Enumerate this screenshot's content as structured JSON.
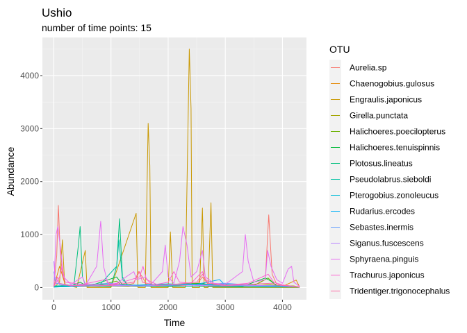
{
  "chart_data": {
    "type": "line",
    "title": "Ushio",
    "subtitle": "number of time points: 15",
    "xlabel": "Time",
    "ylabel": "Abundance",
    "xlim": [
      -200,
      4420
    ],
    "ylim": [
      -230,
      4720
    ],
    "x_ticks": [
      0,
      1000,
      2000,
      3000,
      4000
    ],
    "y_ticks": [
      0,
      1000,
      2000,
      3000,
      4000
    ],
    "x_tick_labels": [
      "0",
      "1000",
      "2000",
      "3000",
      "4000"
    ],
    "y_tick_labels": [
      "0",
      "1000",
      "2000",
      "3000",
      "4000"
    ],
    "grid": true,
    "legend": {
      "title": "OTU",
      "position": "right"
    },
    "series": [
      {
        "name": "Aurelia.sp",
        "color": "#F8766D",
        "points": [
          [
            0,
            20
          ],
          [
            50,
            600
          ],
          [
            80,
            1550
          ],
          [
            110,
            700
          ],
          [
            150,
            250
          ],
          [
            200,
            60
          ],
          [
            300,
            20
          ],
          [
            500,
            30
          ],
          [
            800,
            20
          ],
          [
            1000,
            40
          ],
          [
            1200,
            30
          ],
          [
            1400,
            80
          ],
          [
            1480,
            300
          ],
          [
            1550,
            200
          ],
          [
            1620,
            60
          ],
          [
            1800,
            20
          ],
          [
            2000,
            30
          ],
          [
            2300,
            40
          ],
          [
            2500,
            60
          ],
          [
            2600,
            200
          ],
          [
            2700,
            60
          ],
          [
            3000,
            30
          ],
          [
            3300,
            40
          ],
          [
            3500,
            30
          ],
          [
            3700,
            150
          ],
          [
            3760,
            1370
          ],
          [
            3820,
            250
          ],
          [
            3900,
            60
          ],
          [
            4100,
            30
          ],
          [
            4300,
            10
          ]
        ]
      },
      {
        "name": "Chaenogobius.gulosus",
        "color": "#E58700",
        "points": [
          [
            0,
            10
          ],
          [
            100,
            400
          ],
          [
            130,
            300
          ],
          [
            200,
            50
          ],
          [
            500,
            20
          ],
          [
            1000,
            30
          ],
          [
            1300,
            20
          ],
          [
            1600,
            50
          ],
          [
            1700,
            20
          ],
          [
            2000,
            30
          ],
          [
            2300,
            60
          ],
          [
            2500,
            40
          ],
          [
            2700,
            30
          ],
          [
            3000,
            20
          ],
          [
            3500,
            30
          ],
          [
            4000,
            20
          ],
          [
            4240,
            140
          ],
          [
            4300,
            10
          ]
        ]
      },
      {
        "name": "Engraulis.japonicus",
        "color": "#C99800",
        "points": [
          [
            0,
            0
          ],
          [
            100,
            100
          ],
          [
            150,
            900
          ],
          [
            190,
            50
          ],
          [
            400,
            0
          ],
          [
            550,
            700
          ],
          [
            580,
            0
          ],
          [
            1000,
            0
          ],
          [
            1440,
            1400
          ],
          [
            1470,
            0
          ],
          [
            1600,
            0
          ],
          [
            1650,
            3100
          ],
          [
            1680,
            2300
          ],
          [
            1700,
            0
          ],
          [
            2000,
            0
          ],
          [
            2040,
            1050
          ],
          [
            2080,
            0
          ],
          [
            2300,
            0
          ],
          [
            2370,
            4500
          ],
          [
            2400,
            3380
          ],
          [
            2420,
            0
          ],
          [
            2550,
            0
          ],
          [
            2600,
            1500
          ],
          [
            2630,
            0
          ],
          [
            2700,
            0
          ],
          [
            2750,
            1600
          ],
          [
            2780,
            0
          ],
          [
            3000,
            0
          ],
          [
            4300,
            0
          ]
        ]
      },
      {
        "name": "Girella.punctata",
        "color": "#A3A500",
        "points": [
          [
            0,
            20
          ],
          [
            300,
            40
          ],
          [
            600,
            30
          ],
          [
            900,
            40
          ],
          [
            1200,
            60
          ],
          [
            1500,
            40
          ],
          [
            1800,
            50
          ],
          [
            2100,
            60
          ],
          [
            2400,
            80
          ],
          [
            2700,
            60
          ],
          [
            3000,
            50
          ],
          [
            3300,
            40
          ],
          [
            3600,
            70
          ],
          [
            3900,
            40
          ],
          [
            4200,
            30
          ],
          [
            4300,
            10
          ]
        ]
      },
      {
        "name": "Halichoeres.poecilopterus",
        "color": "#6BB100",
        "points": [
          [
            0,
            10
          ],
          [
            200,
            50
          ],
          [
            420,
            20
          ],
          [
            700,
            30
          ],
          [
            1100,
            120
          ],
          [
            1200,
            30
          ],
          [
            1500,
            20
          ],
          [
            2000,
            50
          ],
          [
            2500,
            80
          ],
          [
            3000,
            30
          ],
          [
            3500,
            40
          ],
          [
            3750,
            180
          ],
          [
            3900,
            30
          ],
          [
            4300,
            10
          ]
        ]
      },
      {
        "name": "Halichoeres.tenuispinnis",
        "color": "#00BA38",
        "points": [
          [
            0,
            20
          ],
          [
            300,
            30
          ],
          [
            460,
            100
          ],
          [
            600,
            20
          ],
          [
            1100,
            200
          ],
          [
            1200,
            50
          ],
          [
            1500,
            30
          ],
          [
            2200,
            40
          ],
          [
            2600,
            80
          ],
          [
            2800,
            30
          ],
          [
            3300,
            20
          ],
          [
            3700,
            180
          ],
          [
            3800,
            120
          ],
          [
            3900,
            30
          ],
          [
            4300,
            10
          ]
        ]
      },
      {
        "name": "Plotosus.lineatus",
        "color": "#00BF7D",
        "points": [
          [
            0,
            10
          ],
          [
            350,
            20
          ],
          [
            430,
            800
          ],
          [
            460,
            1150
          ],
          [
            500,
            200
          ],
          [
            560,
            30
          ],
          [
            1000,
            20
          ],
          [
            1100,
            400
          ],
          [
            1150,
            1300
          ],
          [
            1200,
            200
          ],
          [
            1300,
            30
          ],
          [
            2000,
            20
          ],
          [
            3000,
            10
          ],
          [
            4300,
            10
          ]
        ]
      },
      {
        "name": "Pseudolabrus.sieboldi",
        "color": "#00C1A3",
        "points": [
          [
            0,
            30
          ],
          [
            400,
            40
          ],
          [
            800,
            50
          ],
          [
            1100,
            400
          ],
          [
            1140,
            900
          ],
          [
            1200,
            150
          ],
          [
            1300,
            40
          ],
          [
            1600,
            50
          ],
          [
            2000,
            60
          ],
          [
            2400,
            70
          ],
          [
            2800,
            40
          ],
          [
            3200,
            30
          ],
          [
            3600,
            40
          ],
          [
            4000,
            30
          ],
          [
            4300,
            10
          ]
        ]
      },
      {
        "name": "Pterogobius.zonoleucus",
        "color": "#00BCD8",
        "points": [
          [
            0,
            10
          ],
          [
            500,
            30
          ],
          [
            1000,
            60
          ],
          [
            1500,
            40
          ],
          [
            2000,
            70
          ],
          [
            2500,
            50
          ],
          [
            3000,
            60
          ],
          [
            3500,
            40
          ],
          [
            4000,
            30
          ],
          [
            4300,
            10
          ]
        ]
      },
      {
        "name": "Rudarius.ercodes",
        "color": "#00B0F6",
        "points": [
          [
            0,
            10
          ],
          [
            400,
            20
          ],
          [
            800,
            40
          ],
          [
            1200,
            30
          ],
          [
            1600,
            50
          ],
          [
            2000,
            40
          ],
          [
            2500,
            60
          ],
          [
            2900,
            150
          ],
          [
            3000,
            40
          ],
          [
            3500,
            30
          ],
          [
            4000,
            20
          ],
          [
            4300,
            10
          ]
        ]
      },
      {
        "name": "Sebastes.inermis",
        "color": "#619CFF",
        "points": [
          [
            0,
            300
          ],
          [
            30,
            80
          ],
          [
            300,
            40
          ],
          [
            1000,
            80
          ],
          [
            1200,
            40
          ],
          [
            1500,
            30
          ],
          [
            2000,
            40
          ],
          [
            2500,
            50
          ],
          [
            3000,
            80
          ],
          [
            3500,
            40
          ],
          [
            4000,
            30
          ],
          [
            4300,
            10
          ]
        ]
      },
      {
        "name": "Siganus.fuscescens",
        "color": "#B983FF",
        "points": [
          [
            0,
            500
          ],
          [
            20,
            200
          ],
          [
            100,
            50
          ],
          [
            500,
            30
          ],
          [
            1000,
            40
          ],
          [
            1500,
            30
          ],
          [
            2000,
            50
          ],
          [
            2500,
            40
          ],
          [
            3000,
            30
          ],
          [
            3500,
            40
          ],
          [
            4000,
            30
          ],
          [
            4300,
            10
          ]
        ]
      },
      {
        "name": "Sphyraena.pinguis",
        "color": "#E76BF3",
        "points": [
          [
            0,
            30
          ],
          [
            40,
            1000
          ],
          [
            70,
            1150
          ],
          [
            110,
            800
          ],
          [
            170,
            200
          ],
          [
            300,
            60
          ],
          [
            500,
            200
          ],
          [
            560,
            50
          ],
          [
            750,
            400
          ],
          [
            820,
            1250
          ],
          [
            870,
            400
          ],
          [
            950,
            60
          ],
          [
            1100,
            80
          ],
          [
            1400,
            300
          ],
          [
            1450,
            150
          ],
          [
            1600,
            200
          ],
          [
            1700,
            60
          ],
          [
            1900,
            300
          ],
          [
            1950,
            800
          ],
          [
            2000,
            200
          ],
          [
            2100,
            80
          ],
          [
            2200,
            500
          ],
          [
            2260,
            1150
          ],
          [
            2330,
            800
          ],
          [
            2400,
            200
          ],
          [
            2500,
            300
          ],
          [
            2600,
            700
          ],
          [
            2650,
            200
          ],
          [
            2800,
            80
          ],
          [
            3000,
            60
          ],
          [
            3300,
            300
          ],
          [
            3350,
            1000
          ],
          [
            3400,
            500
          ],
          [
            3500,
            100
          ],
          [
            3700,
            150
          ],
          [
            3740,
            700
          ],
          [
            3800,
            400
          ],
          [
            3900,
            150
          ],
          [
            4000,
            80
          ],
          [
            4100,
            350
          ],
          [
            4160,
            400
          ],
          [
            4200,
            100
          ],
          [
            4300,
            20
          ]
        ]
      },
      {
        "name": "Trachurus.japonicus",
        "color": "#FD61D1",
        "points": [
          [
            0,
            20
          ],
          [
            100,
            200
          ],
          [
            140,
            400
          ],
          [
            200,
            100
          ],
          [
            500,
            60
          ],
          [
            900,
            150
          ],
          [
            1000,
            50
          ],
          [
            1200,
            100
          ],
          [
            1500,
            200
          ],
          [
            1560,
            400
          ],
          [
            1620,
            150
          ],
          [
            1800,
            60
          ],
          [
            2000,
            100
          ],
          [
            2100,
            300
          ],
          [
            2200,
            100
          ],
          [
            2400,
            80
          ],
          [
            2600,
            300
          ],
          [
            2650,
            150
          ],
          [
            2800,
            60
          ],
          [
            3000,
            40
          ],
          [
            3400,
            80
          ],
          [
            3750,
            250
          ],
          [
            3850,
            100
          ],
          [
            4000,
            50
          ],
          [
            4300,
            10
          ]
        ]
      },
      {
        "name": "Tridentiger.trigonocephalus",
        "color": "#FF67A4",
        "points": [
          [
            0,
            20
          ],
          [
            60,
            200
          ],
          [
            100,
            80
          ],
          [
            300,
            30
          ],
          [
            600,
            50
          ],
          [
            1000,
            40
          ],
          [
            1400,
            100
          ],
          [
            1500,
            300
          ],
          [
            1550,
            100
          ],
          [
            1800,
            40
          ],
          [
            2100,
            60
          ],
          [
            2500,
            100
          ],
          [
            2600,
            250
          ],
          [
            2700,
            80
          ],
          [
            3000,
            40
          ],
          [
            3400,
            60
          ],
          [
            3800,
            80
          ],
          [
            4000,
            40
          ],
          [
            4300,
            10
          ]
        ]
      }
    ]
  }
}
